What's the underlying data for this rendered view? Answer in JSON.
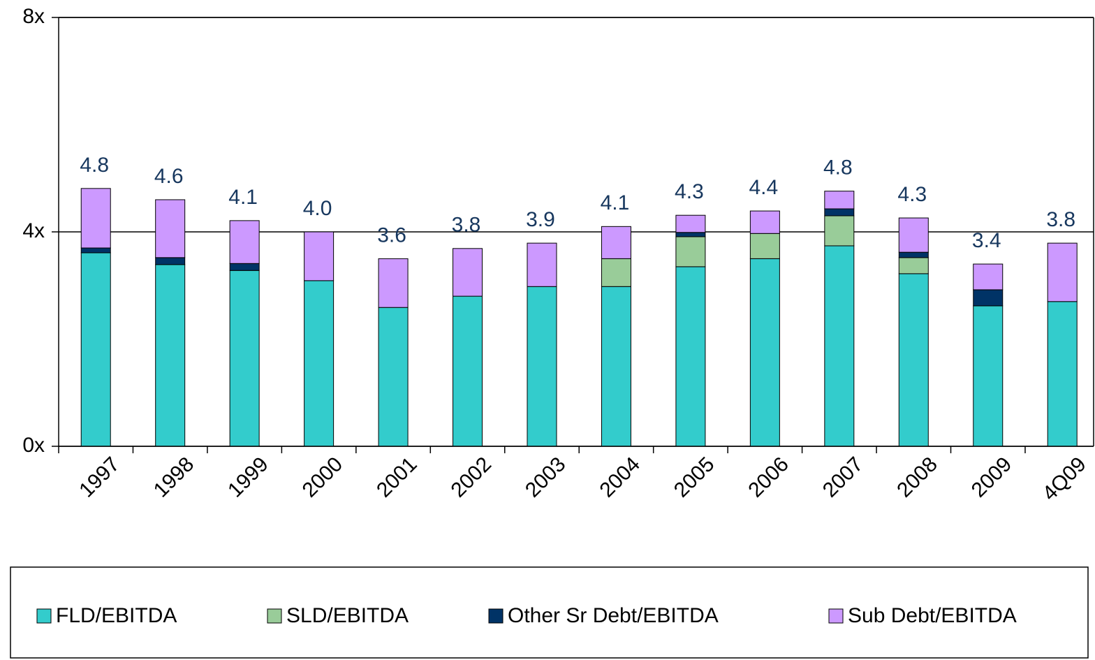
{
  "chart_data": {
    "type": "stacked_bar",
    "categories": [
      "1997",
      "1998",
      "1999",
      "2000",
      "2001",
      "2002",
      "2003",
      "2004",
      "2005",
      "2006",
      "2007",
      "2008",
      "2009",
      "4Q09"
    ],
    "series": [
      {
        "name": "FLD/EBITDA",
        "color": "#33cccc",
        "values": [
          3.61,
          3.39,
          3.28,
          3.09,
          2.59,
          2.8,
          2.98,
          2.98,
          3.35,
          3.5,
          3.74,
          3.22,
          2.62,
          2.7
        ]
      },
      {
        "name": "SLD/EBITDA",
        "color": "#99cc99",
        "values": [
          0,
          0,
          0,
          0,
          0,
          0,
          0,
          0.52,
          0.56,
          0.47,
          0.56,
          0.3,
          0,
          0
        ]
      },
      {
        "name": "Other Sr Debt/EBITDA",
        "color": "#003366",
        "values": [
          0.09,
          0.13,
          0.13,
          0,
          0,
          0,
          0,
          0,
          0.08,
          0,
          0.13,
          0.1,
          0.3,
          0
        ]
      },
      {
        "name": "Sub Debt/EBITDA",
        "color": "#cc99ff",
        "values": [
          1.11,
          1.08,
          0.8,
          0.91,
          0.91,
          0.89,
          0.81,
          0.6,
          0.32,
          0.42,
          0.33,
          0.64,
          0.48,
          1.09
        ]
      }
    ],
    "total_labels": [
      "4.8",
      "4.6",
      "4.1",
      "4.0",
      "3.6",
      "3.8",
      "3.9",
      "4.1",
      "4.3",
      "4.4",
      "4.8",
      "4.3",
      "3.4",
      "3.8"
    ],
    "ylim": [
      0,
      8
    ],
    "yticks": [
      {
        "value": 0,
        "label": "0x"
      },
      {
        "value": 4,
        "label": "4x"
      },
      {
        "value": 8,
        "label": "8x"
      }
    ],
    "grid": true,
    "legend": "bottom"
  }
}
